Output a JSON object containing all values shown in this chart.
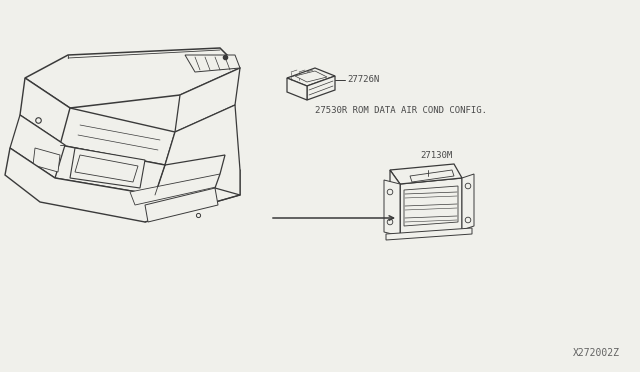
{
  "bg_color": "#f0f0eb",
  "line_color": "#3a3a3a",
  "text_color": "#4a4a4a",
  "label1": "27726N",
  "label2": "27530R ROM DATA AIR COND CONFIG.",
  "label3": "27130M",
  "watermark": "X272002Z",
  "fig_width": 6.4,
  "fig_height": 3.72,
  "dpi": 100
}
